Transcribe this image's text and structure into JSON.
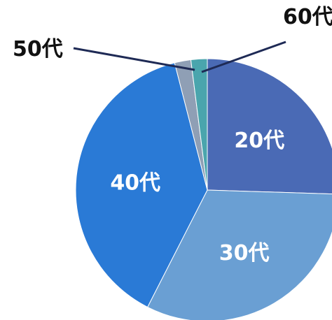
{
  "chart_data": {
    "type": "pie",
    "slices": [
      {
        "label": "20代",
        "value": 25.5,
        "color": "#4a6ab5",
        "label_position": "inside"
      },
      {
        "label": "30代",
        "value": 32.0,
        "color": "#6a9fd3",
        "label_position": "inside"
      },
      {
        "label": "40代",
        "value": 38.5,
        "color": "#2a7ad6",
        "label_position": "inside"
      },
      {
        "label": "50代",
        "value": 2.0,
        "color": "#8f9fb5",
        "label_position": "outside"
      },
      {
        "label": "60代",
        "value": 2.0,
        "color": "#4aa5ad",
        "label_position": "outside"
      }
    ],
    "start_angle": "12 o'clock",
    "direction": "clockwise",
    "legend": "none",
    "leader_line_color": "#1e2a55"
  }
}
